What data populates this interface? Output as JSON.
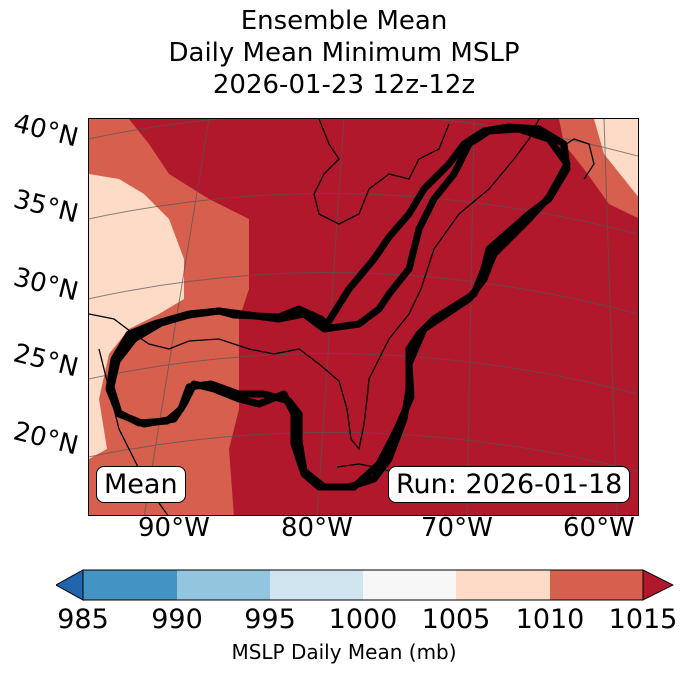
{
  "title": {
    "line1": "Ensemble Mean",
    "line2": "Daily Mean Minimum MSLP",
    "line3": "2026-01-23 12z-12z"
  },
  "map": {
    "lat_labels": [
      "40°N",
      "35°N",
      "30°N",
      "25°N",
      "20°N"
    ],
    "lon_labels": [
      "90°W",
      "80°W",
      "70°W",
      "60°W"
    ],
    "left_box": "Mean",
    "right_box": "Run: 2026-01-18",
    "colors": {
      "dark_red": "#b2182b",
      "red": "#d6604d",
      "light_salmon": "#fddbc7",
      "contour": "#000000"
    }
  },
  "colorbar": {
    "ticks": [
      "985",
      "990",
      "995",
      "1000",
      "1005",
      "1010",
      "1015"
    ],
    "label": "MSLP Daily Mean (mb)",
    "colors": [
      "#2166ac",
      "#4393c3",
      "#92c5de",
      "#d1e5f0",
      "#f7f7f7",
      "#fddbc7",
      "#d6604d",
      "#b2182b"
    ]
  }
}
